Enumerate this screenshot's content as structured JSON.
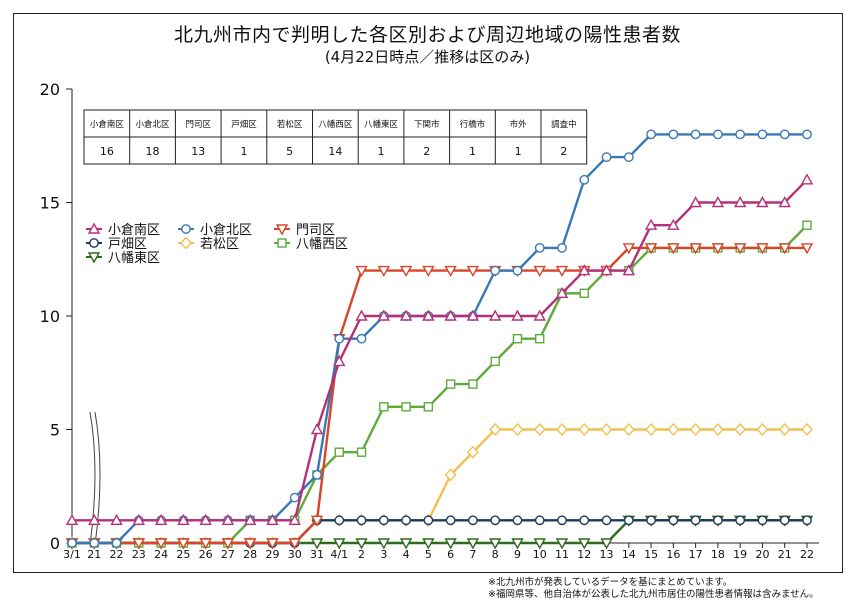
{
  "chart_data": {
    "type": "line",
    "title": "北九州市内で判明した各区別および周辺地域の陽性患者数",
    "subtitle": "(4月22日時点／推移は区のみ)",
    "ylim": [
      0,
      20
    ],
    "yticks": [
      0,
      5,
      10,
      15,
      20
    ],
    "grid": false,
    "legend_position": "left",
    "categories": [
      "3/1",
      "21",
      "22",
      "23",
      "24",
      "25",
      "26",
      "27",
      "28",
      "29",
      "30",
      "31",
      "4/1",
      "2",
      "3",
      "4",
      "5",
      "6",
      "7",
      "8",
      "9",
      "10",
      "11",
      "12",
      "13",
      "14",
      "15",
      "16",
      "17",
      "18",
      "19",
      "20",
      "21",
      "22"
    ],
    "series": [
      {
        "name": "小倉南区",
        "color": "#b5307a",
        "marker": "triangle-up",
        "values": [
          1,
          1,
          1,
          1,
          1,
          1,
          1,
          1,
          1,
          1,
          1,
          5,
          8,
          10,
          10,
          10,
          10,
          10,
          10,
          10,
          10,
          10,
          11,
          12,
          12,
          12,
          14,
          14,
          15,
          15,
          15,
          15,
          15,
          16
        ]
      },
      {
        "name": "小倉北区",
        "color": "#3a78b5",
        "marker": "circle",
        "values": [
          0,
          0,
          0,
          1,
          1,
          1,
          1,
          1,
          1,
          1,
          2,
          3,
          9,
          9,
          10,
          10,
          10,
          10,
          10,
          12,
          12,
          13,
          13,
          16,
          17,
          17,
          18,
          18,
          18,
          18,
          18,
          18,
          18,
          18
        ]
      },
      {
        "name": "門司区",
        "color": "#d7452a",
        "marker": "triangle-down",
        "values": [
          0,
          0,
          0,
          0,
          0,
          0,
          0,
          0,
          0,
          0,
          0,
          1,
          9,
          12,
          12,
          12,
          12,
          12,
          12,
          12,
          12,
          12,
          12,
          12,
          12,
          13,
          13,
          13,
          13,
          13,
          13,
          13,
          13,
          13
        ]
      },
      {
        "name": "戸畑区",
        "color": "#1d3a5a",
        "marker": "circle",
        "values": [
          0,
          0,
          0,
          0,
          0,
          0,
          0,
          0,
          0,
          0,
          0,
          1,
          1,
          1,
          1,
          1,
          1,
          1,
          1,
          1,
          1,
          1,
          1,
          1,
          1,
          1,
          1,
          1,
          1,
          1,
          1,
          1,
          1,
          1
        ]
      },
      {
        "name": "若松区",
        "color": "#f0c050",
        "marker": "diamond",
        "values": [
          0,
          0,
          0,
          0,
          0,
          0,
          0,
          0,
          0,
          0,
          0,
          1,
          1,
          1,
          1,
          1,
          1,
          3,
          4,
          5,
          5,
          5,
          5,
          5,
          5,
          5,
          5,
          5,
          5,
          5,
          5,
          5,
          5,
          5
        ]
      },
      {
        "name": "八幡西区",
        "color": "#5eab3a",
        "marker": "square",
        "values": [
          0,
          0,
          0,
          0,
          0,
          0,
          0,
          0,
          1,
          1,
          1,
          3,
          4,
          4,
          6,
          6,
          6,
          7,
          7,
          8,
          9,
          9,
          11,
          11,
          12,
          12,
          13,
          13,
          13,
          13,
          13,
          13,
          13,
          14
        ]
      },
      {
        "name": "八幡東区",
        "color": "#2f6a1e",
        "marker": "triangle-down",
        "values": [
          0,
          0,
          0,
          0,
          0,
          0,
          0,
          0,
          0,
          0,
          0,
          0,
          0,
          0,
          0,
          0,
          0,
          0,
          0,
          0,
          0,
          0,
          0,
          0,
          0,
          1,
          1,
          1,
          1,
          1,
          1,
          1,
          1,
          1
        ]
      }
    ],
    "summary_table": {
      "headers": [
        "小倉南区",
        "小倉北区",
        "門司区",
        "戸畑区",
        "若松区",
        "八幡西区",
        "八幡東区",
        "下関市",
        "行橋市",
        "市外",
        "調査中"
      ],
      "values": [
        "16",
        "18",
        "13",
        "1",
        "5",
        "14",
        "1",
        "2",
        "1",
        "1",
        "2"
      ]
    }
  },
  "notes": [
    "※北九州市が発表しているデータを基にまとめています。",
    "※福岡県等、他自治体が公表した北九州市居住の陽性患者情報は含みません。"
  ]
}
